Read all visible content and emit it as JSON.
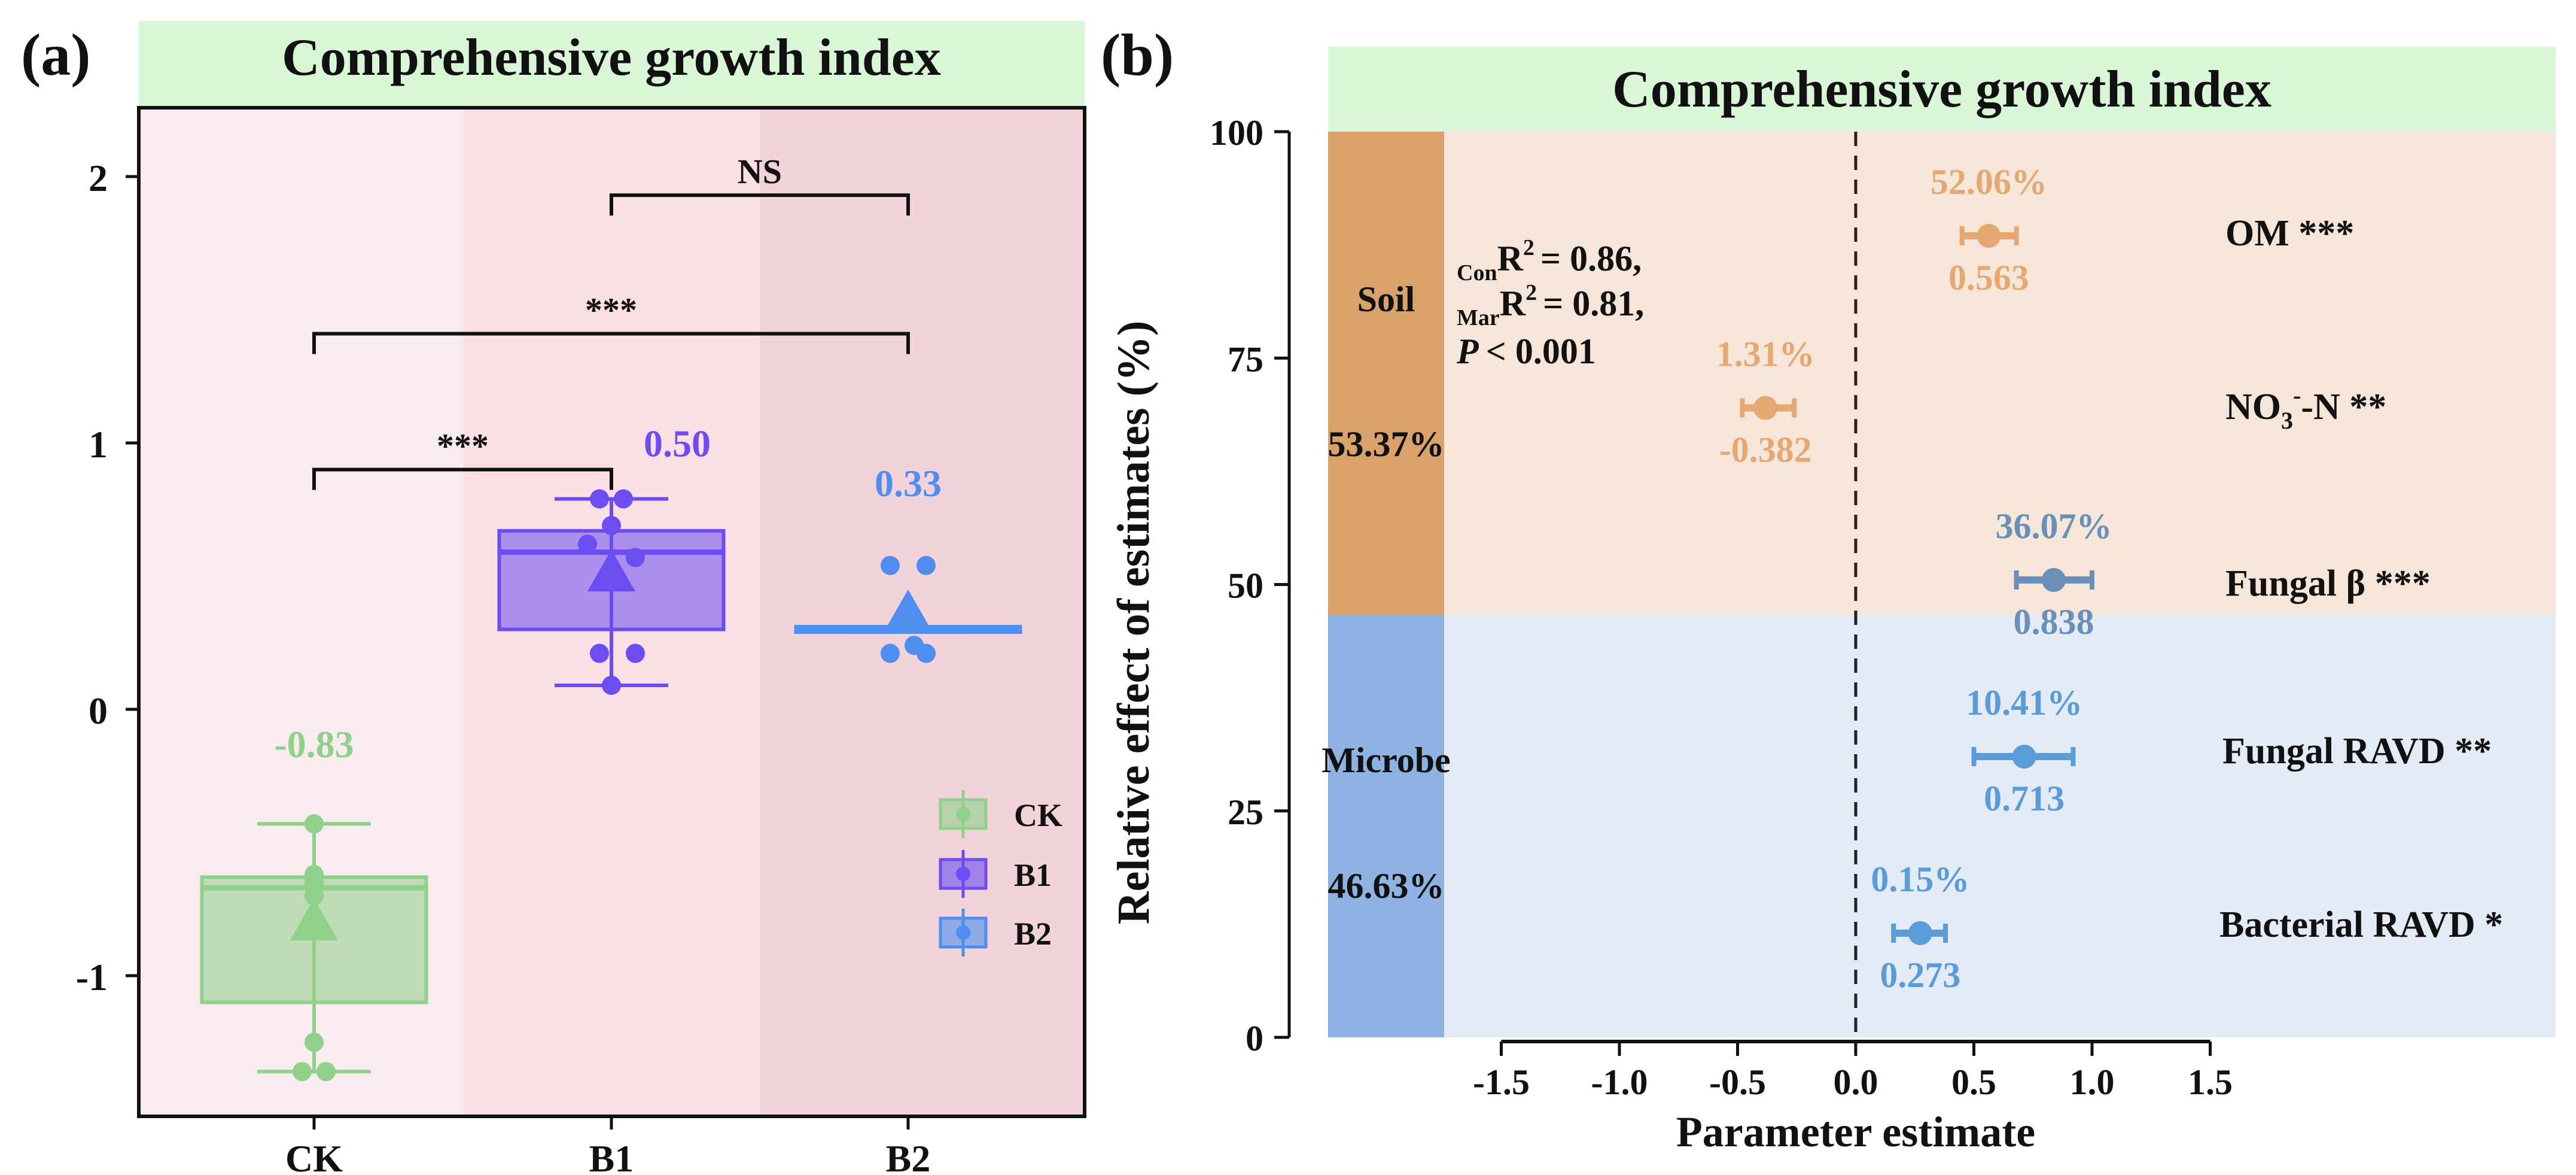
{
  "chart_data": [
    {
      "panel": "(a)",
      "type": "box",
      "title": "Comprehensive growth index",
      "categories": [
        "CK",
        "B1",
        "B2"
      ],
      "ylim": [
        -1.5,
        2.35
      ],
      "yticks": [
        -1,
        0,
        1,
        2
      ],
      "series": [
        {
          "name": "CK",
          "color": "#8fd08a",
          "mean": -0.83,
          "mean_label": "-0.83",
          "q1": -1.1,
          "median": -0.67,
          "q3": -0.63,
          "whisker_low": -1.36,
          "whisker_high": -0.43,
          "points": [
            -0.43,
            -0.43,
            -0.62,
            -0.65,
            -0.7,
            -1.25,
            -1.36,
            -1.36
          ]
        },
        {
          "name": "B1",
          "color": "#6b4df2",
          "mean": 0.5,
          "mean_label": "0.50",
          "q1": 0.3,
          "median": 0.59,
          "q3": 0.67,
          "whisker_low": 0.09,
          "whisker_high": 0.79,
          "points": [
            0.79,
            0.79,
            0.69,
            0.62,
            0.57,
            0.21,
            0.21,
            0.09
          ]
        },
        {
          "name": "B2",
          "color": "#4f8df0",
          "mean": 0.33,
          "mean_label": "0.33",
          "q1": 0.29,
          "median": 0.3,
          "q3": 0.31,
          "whisker_low": 0.29,
          "whisker_high": 0.31,
          "points": [
            0.54,
            0.54,
            0.24,
            0.21,
            0.21
          ]
        }
      ],
      "comparisons": [
        {
          "from": "CK",
          "to": "B1",
          "level": 0.9,
          "label": "***"
        },
        {
          "from": "CK",
          "to": "B2",
          "level": 1.41,
          "label": "***"
        },
        {
          "from": "B1",
          "to": "B2",
          "level": 1.93,
          "label": "NS"
        }
      ],
      "legend": [
        "CK",
        "B1",
        "B2"
      ],
      "legend_position": "right"
    },
    {
      "panel": "(b)",
      "type": "forest",
      "title": "Comprehensive growth index",
      "xlabel": "Parameter estimate",
      "ylabel": "Relative effect of estimates (%)",
      "xlim": [
        -1.5,
        1.5
      ],
      "xticks": [
        "-1.5",
        "-1.0",
        "-0.5",
        "0.0",
        "0.5",
        "1.0",
        "1.5"
      ],
      "ylim": [
        0,
        100
      ],
      "yticks": [
        "0",
        "25",
        "50",
        "75",
        "100"
      ],
      "groups": [
        {
          "name": "Soil",
          "percent": "53.37%",
          "range": [
            46.63,
            100
          ],
          "color": "#d9a26b",
          "bg": "#f5e6d9"
        },
        {
          "name": "Microbe",
          "percent": "46.63%",
          "range": [
            0,
            46.63
          ],
          "color": "#8eb3e3",
          "bg": "#e3ebf7"
        }
      ],
      "stats": {
        "con_r2": "= 0.86,",
        "mar_r2": "= 0.81,",
        "p_value": "< 0.001"
      },
      "predictors": [
        {
          "label": "OM",
          "sig": "***",
          "y": 88.5,
          "estimate": 0.563,
          "est_label": "0.563",
          "ci": [
            0.45,
            0.68
          ],
          "pct": "52.06%",
          "color": "#e6a872"
        },
        {
          "label": "NO3-N",
          "sig": "**",
          "y": 69.5,
          "estimate": -0.382,
          "est_label": "-0.382",
          "ci": [
            -0.48,
            -0.26
          ],
          "pct": "1.31%",
          "color": "#e6a872"
        },
        {
          "label": "Fungal β",
          "sig": "***",
          "y": 50.5,
          "estimate": 0.838,
          "est_label": "0.838",
          "ci": [
            0.68,
            1.0
          ],
          "pct": "36.07%",
          "color": "#6a8fb8"
        },
        {
          "label": "Fungal RAVD",
          "sig": "**",
          "y": 31,
          "estimate": 0.713,
          "est_label": "0.713",
          "ci": [
            0.5,
            0.92
          ],
          "pct": "10.41%",
          "color": "#5b9bd8"
        },
        {
          "label": "Bacterial RAVD",
          "sig": "*",
          "y": 11.5,
          "estimate": 0.273,
          "est_label": "0.273",
          "ci": [
            0.16,
            0.38
          ],
          "pct": "0.15%",
          "color": "#5b9bd8"
        }
      ]
    }
  ],
  "panel_labels": {
    "a": "(a)",
    "b": "(b)"
  },
  "stat_labels": {
    "r2": "R",
    "sq": "2",
    "con": "Con",
    "mar": "Mar",
    "p": "P"
  },
  "no3": {
    "pre": "NO",
    "sub": "3",
    "sup": "-",
    "post": "-N"
  }
}
